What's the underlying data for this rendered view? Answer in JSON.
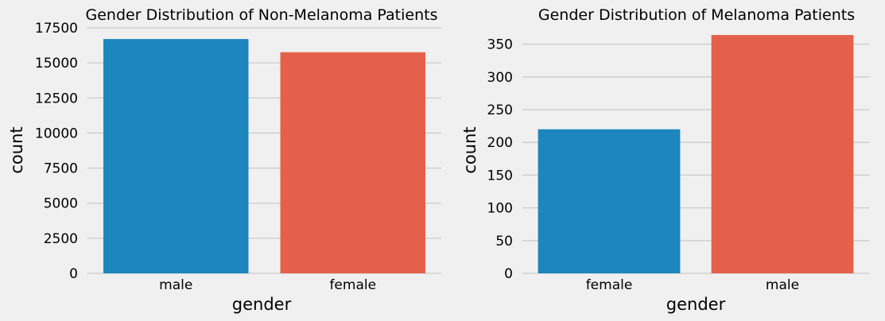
{
  "chart_data": [
    {
      "type": "bar",
      "title": "Gender Distribution of Non-Melanoma Patients",
      "xlabel": "gender",
      "ylabel": "count",
      "categories": [
        "male",
        "female"
      ],
      "values": [
        16700,
        15760
      ],
      "colors": [
        "#1c86bd",
        "#e5604a"
      ],
      "ylim": [
        0,
        17500
      ],
      "yticks": [
        0,
        2500,
        5000,
        7500,
        10000,
        12500,
        15000,
        17500
      ],
      "grid": true
    },
    {
      "type": "bar",
      "title": "Gender Distribution of Melanoma Patients",
      "xlabel": "gender",
      "ylabel": "count",
      "categories": [
        "female",
        "male"
      ],
      "values": [
        220,
        364
      ],
      "colors": [
        "#1c86bd",
        "#e5604a"
      ],
      "ylim": [
        0,
        375
      ],
      "yticks": [
        0,
        50,
        100,
        150,
        200,
        250,
        300,
        350
      ],
      "grid": true
    }
  ]
}
